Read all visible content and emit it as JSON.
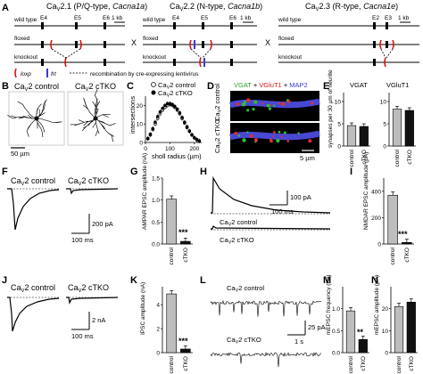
{
  "panels": {
    "A": {
      "letter": "A",
      "genes": [
        {
          "title": "CaV2.1 (P/Q-type, Cacna1a)",
          "exons": [
            "E4",
            "E5",
            "E6"
          ]
        },
        {
          "title": "CaV2.2 (N-type, Cacna1b)",
          "exons": [
            "E4",
            "E5",
            "E6"
          ]
        },
        {
          "title": "CaV2.3 (R-type, Cacna1e)",
          "exons": [
            "E2",
            "E3"
          ]
        }
      ],
      "row_labels": [
        "wild type",
        "floxed",
        "knockout"
      ],
      "scale": "1 kb",
      "cross": "X",
      "legend_loxp": "loxp",
      "legend_frt": "frt",
      "legend_recomb": "recombination by cre-expressing lentivirus"
    },
    "B": {
      "letter": "B",
      "control": "CaV2 control",
      "ctko": "CaV2 cTKO",
      "scale": "50 µm"
    },
    "C": {
      "letter": "C",
      "legend": [
        "CaV2 control",
        "CaV2 cTKO"
      ],
      "xlabel": "sholl radius (µm)",
      "ylabel": "intersections",
      "xticks": [
        "0",
        "100",
        "200"
      ],
      "yticks": [
        "0",
        "10",
        "20"
      ]
    },
    "D": {
      "letter": "D",
      "header_vgat": "VGAT",
      "header_plus1": " + ",
      "header_vglut": "VGluT1",
      "header_plus2": " + ",
      "header_map2": "MAP2",
      "row1": "CaV2 control",
      "row2": "CaV2 cTKO",
      "scale": "5 µm"
    },
    "E": {
      "letter": "E",
      "titles": [
        "VGAT",
        "VGluT1"
      ],
      "ylabel": "synapses per 30 µm of neurite",
      "yticks": [
        "0",
        "5",
        "10"
      ],
      "categories": [
        "control",
        "cTKO"
      ]
    },
    "F": {
      "letter": "F",
      "control": "CaV2 control",
      "ctko": "CaV2 cTKO",
      "scale_y": "200 pA",
      "scale_x": "100 ms"
    },
    "G": {
      "letter": "G",
      "ylabel": "AMPAR EPSC amplitude (nA)",
      "yticks": [
        "0.0",
        "0.5",
        "1.0",
        "1.5"
      ],
      "categories": [
        "control",
        "cTKO"
      ],
      "stars": "***"
    },
    "H": {
      "letter": "H",
      "control": "CaV2 control",
      "ctko": "CaV2 cTKO",
      "scale_y": "100 pA",
      "scale_x": "100 ms"
    },
    "I": {
      "letter": "I",
      "ylabel": "NMDAR EPSC amplitude (pA)",
      "yticks": [
        "0",
        "200",
        "400"
      ],
      "categories": [
        "control",
        "cTKO"
      ],
      "stars": "***"
    },
    "J": {
      "letter": "J",
      "control": "CaV2 control",
      "ctko": "CaV2 cTKO",
      "scale_y": "2 nA",
      "scale_x": "100 ms"
    },
    "K": {
      "letter": "K",
      "ylabel": "IPSC amplitude (nA)",
      "yticks": [
        "0",
        "2",
        "4"
      ],
      "categories": [
        "control",
        "cTKO"
      ],
      "stars": "***"
    },
    "L": {
      "letter": "L",
      "control": "CaV2 control",
      "ctko": "CaV2 cTKO",
      "scale_y": "25 pA",
      "scale_x": "1 s"
    },
    "M": {
      "letter": "M",
      "ylabel": "mEPSC frequency (Hz)",
      "yticks": [
        "0.0",
        "0.5",
        "1.0"
      ],
      "categories": [
        "control",
        "cTKO"
      ],
      "stars": "**"
    },
    "N": {
      "letter": "N",
      "ylabel": "mEPSC amplitude (pA)",
      "yticks": [
        "0",
        "10",
        "20"
      ],
      "categories": [
        "control",
        "cTKO"
      ]
    }
  },
  "chart_data": [
    {
      "type": "line",
      "id": "C",
      "x": [
        10,
        20,
        30,
        40,
        50,
        60,
        70,
        80,
        90,
        100,
        110,
        120,
        130,
        140,
        150,
        160,
        170,
        180,
        190,
        200,
        210,
        220
      ],
      "series": [
        {
          "name": "CaV2 control",
          "values": [
            2,
            4,
            7,
            10,
            13,
            15.5,
            17.5,
            19,
            20,
            20.5,
            20,
            19,
            17.5,
            15.5,
            13,
            10.5,
            8,
            6,
            4,
            2.5,
            1.5,
            0.8
          ]
        },
        {
          "name": "CaV2 cTKO",
          "values": [
            2.2,
            4.5,
            7.5,
            11,
            14,
            16.5,
            18.5,
            20,
            21,
            21,
            20.5,
            19.5,
            18,
            16,
            13.5,
            11,
            8.5,
            6.2,
            4.2,
            2.6,
            1.6,
            0.9
          ]
        }
      ],
      "xlabel": "sholl radius (µm)",
      "ylabel": "intersections",
      "ylim": [
        0,
        25
      ]
    },
    {
      "type": "bar",
      "id": "E-VGAT",
      "categories": [
        "control",
        "cTKO"
      ],
      "values": [
        4.6,
        4.4
      ],
      "ylim": [
        0,
        12
      ]
    },
    {
      "type": "bar",
      "id": "E-VGluT1",
      "categories": [
        "control",
        "cTKO"
      ],
      "values": [
        8.3,
        8.0
      ],
      "ylim": [
        0,
        12
      ]
    },
    {
      "type": "bar",
      "id": "G",
      "categories": [
        "control",
        "cTKO"
      ],
      "values": [
        1.02,
        0.06
      ],
      "ylim": [
        0,
        1.5
      ]
    },
    {
      "type": "bar",
      "id": "I",
      "categories": [
        "control",
        "cTKO"
      ],
      "values": [
        370,
        12
      ],
      "ylim": [
        0,
        500
      ]
    },
    {
      "type": "bar",
      "id": "K",
      "categories": [
        "control",
        "cTKO"
      ],
      "values": [
        4.9,
        0.3
      ],
      "ylim": [
        0,
        5.5
      ]
    },
    {
      "type": "bar",
      "id": "M",
      "categories": [
        "control",
        "cTKO"
      ],
      "values": [
        0.95,
        0.3
      ],
      "ylim": [
        0,
        1.5
      ]
    },
    {
      "type": "bar",
      "id": "N",
      "categories": [
        "control",
        "cTKO"
      ],
      "values": [
        21,
        23
      ],
      "ylim": [
        0,
        30
      ]
    }
  ]
}
